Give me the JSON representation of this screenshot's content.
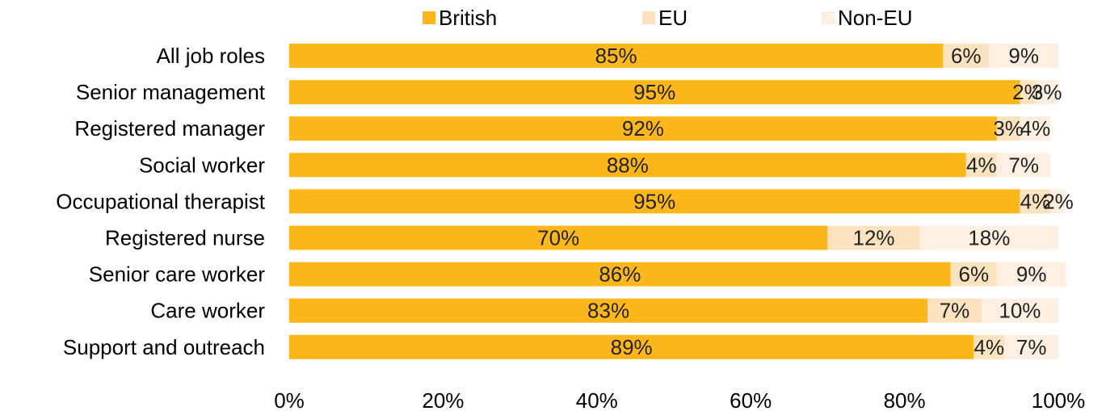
{
  "chart_data": {
    "type": "bar",
    "orientation": "horizontal",
    "stacked": true,
    "title": "",
    "xlabel": "",
    "ylabel": "",
    "categories": [
      "All job roles",
      "Senior management",
      "Registered manager",
      "Social worker",
      "Occupational therapist",
      "Registered nurse",
      "Senior care worker",
      "Care worker",
      "Support and outreach"
    ],
    "series": [
      {
        "name": "British",
        "color": "#FDB71A",
        "values": [
          85,
          95,
          92,
          88,
          95,
          70,
          86,
          83,
          89
        ],
        "labels": [
          "85%",
          "95%",
          "92%",
          "88%",
          "95%",
          "70%",
          "86%",
          "83%",
          "89%"
        ]
      },
      {
        "name": "EU",
        "color": "#FCE3C0",
        "values": [
          6,
          2,
          3,
          4,
          4,
          12,
          6,
          7,
          4
        ],
        "labels": [
          "6%",
          "2%",
          "3%",
          "4%",
          "4%",
          "12%",
          "6%",
          "7%",
          "4%"
        ]
      },
      {
        "name": "Non-EU",
        "color": "#FDF0E3",
        "values": [
          9,
          3,
          4,
          7,
          2,
          18,
          9,
          10,
          7
        ],
        "labels": [
          "9%",
          "3%",
          "4%",
          "7%",
          "2%",
          "18%",
          "9%",
          "10%",
          "7%"
        ]
      }
    ],
    "xlim": [
      0,
      100
    ],
    "x_ticks": [
      0,
      20,
      40,
      60,
      80,
      100
    ],
    "x_tick_labels": [
      "0%",
      "20%",
      "40%",
      "60%",
      "80%",
      "100%"
    ],
    "grid": false,
    "legend_position": "top"
  }
}
